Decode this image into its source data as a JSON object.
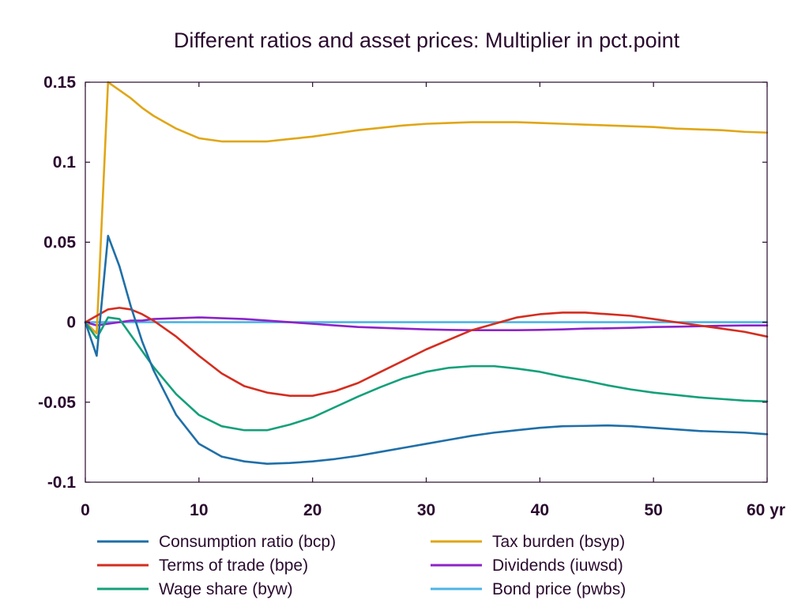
{
  "chart_data": {
    "type": "line",
    "title": "Different ratios and asset prices: Multiplier in pct.point",
    "xlabel": "",
    "ylabel": "",
    "x_unit_label": "yr",
    "xlim": [
      0,
      60
    ],
    "ylim": [
      -0.1,
      0.15
    ],
    "xticks": [
      0,
      10,
      20,
      30,
      40,
      50,
      60
    ],
    "xtick_labels": [
      "0",
      "10",
      "20",
      "30",
      "40",
      "50",
      "60 yr"
    ],
    "yticks": [
      -0.1,
      -0.05,
      0,
      0.05,
      0.1,
      0.15
    ],
    "ytick_labels": [
      "-0.1",
      "-0.05",
      "0",
      "0.05",
      "0.1",
      "0.15"
    ],
    "grid": false,
    "legend_position": "bottom",
    "x": [
      0,
      1,
      2,
      3,
      4,
      5,
      6,
      8,
      10,
      12,
      14,
      16,
      18,
      20,
      22,
      24,
      26,
      28,
      30,
      32,
      34,
      36,
      38,
      40,
      42,
      44,
      46,
      48,
      50,
      52,
      54,
      56,
      58,
      60
    ],
    "series": [
      {
        "name": "Consumption ratio (bcp)",
        "color": "#1f6fa8",
        "values": [
          0,
          -0.021,
          0.054,
          0.035,
          0.01,
          -0.012,
          -0.03,
          -0.058,
          -0.076,
          -0.084,
          -0.087,
          -0.0885,
          -0.088,
          -0.087,
          -0.0855,
          -0.0835,
          -0.081,
          -0.0785,
          -0.076,
          -0.0735,
          -0.071,
          -0.069,
          -0.0675,
          -0.066,
          -0.065,
          -0.0648,
          -0.0645,
          -0.065,
          -0.066,
          -0.067,
          -0.068,
          -0.0685,
          -0.069,
          -0.07
        ]
      },
      {
        "name": "Terms of trade (bpe)",
        "color": "#d42d1f",
        "values": [
          0,
          0.004,
          0.008,
          0.009,
          0.008,
          0.005,
          0.001,
          -0.009,
          -0.021,
          -0.032,
          -0.04,
          -0.044,
          -0.046,
          -0.046,
          -0.043,
          -0.038,
          -0.031,
          -0.024,
          -0.017,
          -0.011,
          -0.005,
          -0.001,
          0.003,
          0.005,
          0.006,
          0.006,
          0.005,
          0.004,
          0.002,
          0,
          -0.002,
          -0.004,
          -0.006,
          -0.009
        ]
      },
      {
        "name": "Wage share (byw)",
        "color": "#14a07a",
        "values": [
          0,
          -0.01,
          0.003,
          0.002,
          -0.008,
          -0.018,
          -0.028,
          -0.045,
          -0.058,
          -0.065,
          -0.0675,
          -0.0675,
          -0.064,
          -0.0595,
          -0.053,
          -0.0465,
          -0.0405,
          -0.035,
          -0.031,
          -0.0285,
          -0.0275,
          -0.0275,
          -0.029,
          -0.031,
          -0.034,
          -0.0365,
          -0.0395,
          -0.042,
          -0.044,
          -0.0455,
          -0.047,
          -0.048,
          -0.049,
          -0.0495
        ]
      },
      {
        "name": "Tax burden (bsyp)",
        "color": "#e0a616",
        "values": [
          0,
          -0.007,
          0.15,
          0.145,
          0.14,
          0.134,
          0.129,
          0.121,
          0.115,
          0.113,
          0.113,
          0.113,
          0.1145,
          0.116,
          0.118,
          0.12,
          0.1215,
          0.123,
          0.124,
          0.1245,
          0.125,
          0.125,
          0.125,
          0.1245,
          0.124,
          0.1235,
          0.123,
          0.1225,
          0.122,
          0.121,
          0.1205,
          0.12,
          0.119,
          0.1185
        ]
      },
      {
        "name": "Dividends (iuwsd)",
        "color": "#8c23c8",
        "values": [
          0,
          -0.002,
          -0.001,
          0,
          0.001,
          0.001,
          0.002,
          0.0025,
          0.003,
          0.0025,
          0.002,
          0.001,
          0,
          -0.001,
          -0.002,
          -0.003,
          -0.0035,
          -0.004,
          -0.0045,
          -0.0048,
          -0.005,
          -0.005,
          -0.005,
          -0.0048,
          -0.0045,
          -0.004,
          -0.0038,
          -0.0035,
          -0.003,
          -0.0028,
          -0.0025,
          -0.0022,
          -0.002,
          -0.002
        ]
      },
      {
        "name": "Bond price (pwbs)",
        "color": "#4bb4e6",
        "values": [
          0,
          0,
          0,
          0,
          0,
          0,
          0,
          0,
          0,
          0,
          0,
          0,
          0,
          0,
          0,
          0,
          0,
          0,
          0,
          0,
          0,
          0,
          0,
          0,
          0,
          0,
          0,
          0,
          0,
          0,
          0,
          0,
          0,
          0
        ]
      }
    ],
    "reference_line": {
      "y": 0,
      "color": "#1e2a3a"
    }
  }
}
